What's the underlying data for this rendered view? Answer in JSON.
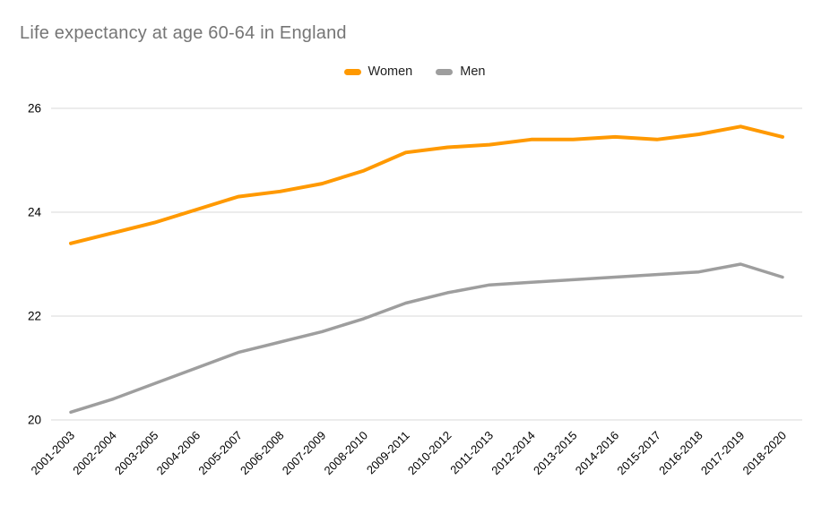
{
  "chart_data": {
    "type": "line",
    "title": "Life expectancy at age 60-64 in England",
    "categories": [
      "2001-2003",
      "2002-2004",
      "2003-2005",
      "2004-2006",
      "2005-2007",
      "2006-2008",
      "2007-2009",
      "2008-2010",
      "2009-2011",
      "2010-2012",
      "2011-2013",
      "2012-2014",
      "2013-2015",
      "2014-2016",
      "2015-2017",
      "2016-2018",
      "2017-2019",
      "2018-2020"
    ],
    "series": [
      {
        "name": "Women",
        "color": "#FF9900",
        "values": [
          23.4,
          23.6,
          23.8,
          24.05,
          24.3,
          24.4,
          24.55,
          24.8,
          25.15,
          25.25,
          25.3,
          25.4,
          25.4,
          25.45,
          25.4,
          25.5,
          25.65,
          25.45
        ]
      },
      {
        "name": "Men",
        "color": "#9E9E9E",
        "values": [
          20.15,
          20.4,
          20.7,
          21.0,
          21.3,
          21.5,
          21.7,
          21.95,
          22.25,
          22.45,
          22.6,
          22.65,
          22.7,
          22.75,
          22.8,
          22.85,
          23.0,
          22.75
        ]
      }
    ],
    "xlabel": "",
    "ylabel": "",
    "ylim": [
      20,
      26
    ],
    "yticks": [
      20,
      22,
      24,
      26
    ],
    "grid": true,
    "legend_position": "top-center",
    "x_label_rotation": -45,
    "styles": {
      "title_color": "#757575",
      "legend_text_color": "#212121",
      "axis_text_color": "#000000",
      "grid_color": "#DADADA",
      "background": "#FFFFFF"
    }
  }
}
